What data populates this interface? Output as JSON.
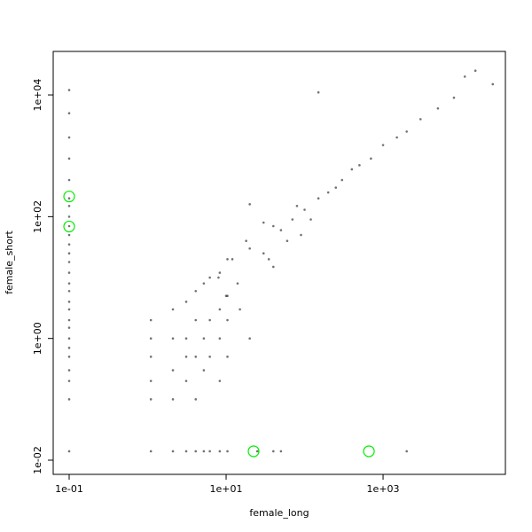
{
  "chart_data": {
    "type": "scatter",
    "xlabel": "female_long",
    "ylabel": "female_short",
    "log_x": true,
    "log_y": true,
    "xlim": [
      0.0626,
      36200
    ],
    "ylim": [
      0.00585,
      51800
    ],
    "xticks": [
      {
        "value": 0.1,
        "label": "1e-01"
      },
      {
        "value": 10,
        "label": "1e+01"
      },
      {
        "value": 1000,
        "label": "1e+03"
      }
    ],
    "yticks": [
      {
        "value": 0.01,
        "label": "1e-02"
      },
      {
        "value": 1,
        "label": "1e+00"
      },
      {
        "value": 100,
        "label": "1e+02"
      },
      {
        "value": 10000,
        "label": "1e+04"
      }
    ],
    "series": [
      {
        "color": "#000000",
        "x": [
          0.1,
          0.1,
          0.1,
          0.1,
          0.1,
          0.1,
          0.1,
          0.1,
          0.1,
          0.1,
          0.1,
          0.1,
          0.1,
          0.1,
          0.1,
          0.1,
          0.1,
          0.1,
          0.1,
          0.1,
          0.1,
          0.1,
          0.1,
          0.1,
          0.1,
          0.1,
          0.1,
          1.1,
          1.1,
          1.1,
          1.1,
          1.1,
          1.1,
          2.1,
          2.1,
          2.1,
          2.1,
          2.1,
          3.1,
          3.1,
          3.1,
          3.1,
          3.1,
          4.1,
          4.1,
          4.1,
          4.1,
          4.1,
          5.2,
          5.2,
          5.2,
          5.2,
          6.2,
          6.2,
          6.2,
          6.2,
          8.3,
          8.3,
          8.3,
          8.3,
          8.3,
          10.4,
          10.4,
          10.4,
          10.4,
          10.4,
          20,
          30,
          50,
          70,
          100,
          150,
          200,
          300,
          500,
          700,
          1000,
          1500,
          2000,
          3000,
          5000,
          8000,
          11000,
          15000,
          25000,
          10,
          15,
          20,
          12,
          8,
          40,
          30,
          150,
          20,
          25,
          40,
          50,
          2000,
          60,
          80,
          120,
          250,
          400,
          40,
          18,
          14,
          35,
          90
        ],
        "values": [
          12000,
          5000,
          2000,
          900,
          400,
          200,
          150,
          100,
          70,
          50,
          35,
          25,
          18,
          12,
          8,
          6,
          4,
          3,
          2,
          1.5,
          1,
          0.7,
          0.5,
          0.3,
          0.2,
          0.1,
          0.014,
          0.014,
          0.1,
          0.2,
          0.5,
          1,
          2,
          0.014,
          0.1,
          0.3,
          1,
          3,
          0.014,
          0.2,
          0.5,
          1,
          4,
          0.014,
          0.1,
          0.5,
          2,
          6,
          0.014,
          0.3,
          1,
          8,
          0.014,
          0.5,
          2,
          10,
          0.014,
          0.2,
          1,
          3,
          12,
          0.014,
          0.5,
          2,
          5,
          20,
          30,
          25,
          60,
          90,
          130,
          200,
          250,
          400,
          700,
          900,
          1500,
          2000,
          2500,
          4000,
          6000,
          9000,
          20000,
          25000,
          15000,
          5,
          3,
          1,
          20,
          10,
          15,
          80,
          11000,
          160,
          0.014,
          0.014,
          0.014,
          0.014,
          40,
          150,
          90,
          300,
          600,
          70,
          40,
          8,
          20,
          50
        ]
      },
      {
        "color": "#00ee00",
        "x": [
          0.1,
          0.1,
          22.4,
          660
        ],
        "values": [
          215,
          69,
          0.014,
          0.014
        ]
      }
    ]
  }
}
